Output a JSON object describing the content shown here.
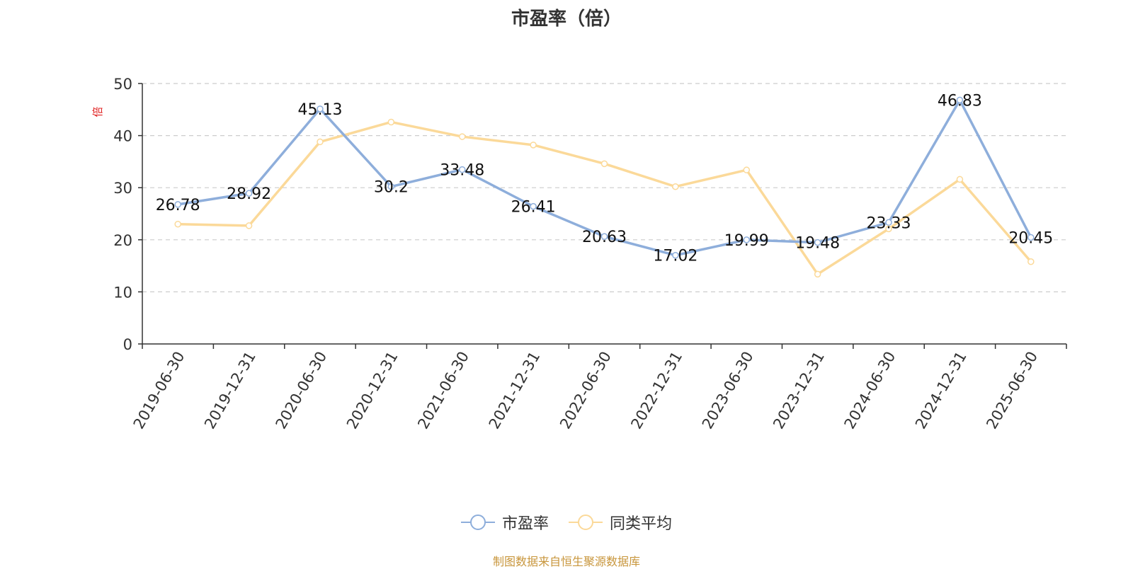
{
  "chart_data": {
    "type": "line",
    "title": "市盈率（倍）",
    "ylabel": "倍",
    "categories": [
      "2019-06-30",
      "2019-12-31",
      "2020-06-30",
      "2020-12-31",
      "2021-06-30",
      "2021-12-31",
      "2022-06-30",
      "2022-12-31",
      "2023-06-30",
      "2023-12-31",
      "2024-06-30",
      "2024-12-31",
      "2025-06-30"
    ],
    "ylim": [
      0,
      50
    ],
    "yticks": [
      0,
      10,
      20,
      30,
      40,
      50
    ],
    "grid": true,
    "legend_position": "bottom",
    "series": [
      {
        "name": "市盈率",
        "color": "#8eaedb",
        "values": [
          26.78,
          28.92,
          45.13,
          30.2,
          33.48,
          26.41,
          20.63,
          17.02,
          19.99,
          19.48,
          23.33,
          46.83,
          20.45
        ],
        "labels": [
          "26.78",
          "28.92",
          "45.13",
          "30.2",
          "33.48",
          "26.41",
          "20.63",
          "17.02",
          "19.99",
          "19.48",
          "23.33",
          "46.83",
          "20.45"
        ]
      },
      {
        "name": "同类平均",
        "color": "#fbd999",
        "values": [
          23.0,
          22.7,
          38.8,
          42.6,
          39.8,
          38.2,
          34.6,
          30.2,
          33.4,
          13.4,
          22.1,
          31.6,
          15.8
        ]
      }
    ]
  },
  "footer": {
    "source": "制图数据来自恒生聚源数据库"
  }
}
